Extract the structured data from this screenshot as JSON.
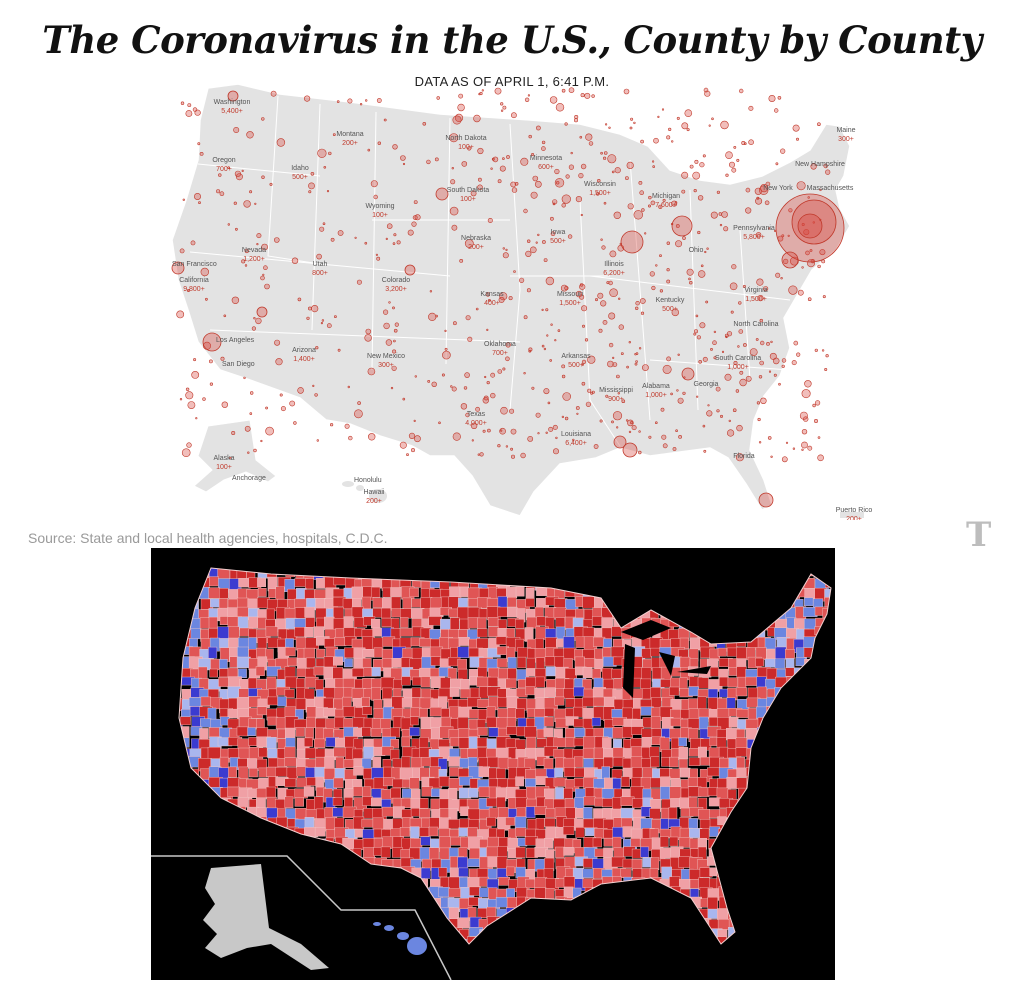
{
  "header": {
    "title": "The Coronavirus in the U.S., County by County",
    "subtitle": "DATA AS OF APRIL 1, 6:41 P.M."
  },
  "source": "Source: State and local health agencies, hospitals, C.D.C.",
  "logo_text": "T",
  "colors": {
    "land": "#e3e3e3",
    "bubble_stroke": "#c0392b",
    "bubble_fill": "rgba(214,70,60,0.35)",
    "rep_dark": "#cc2a2a",
    "rep_mid": "#e05555",
    "rep_light": "#f0a0a5",
    "dem_dark": "#3b3bd0",
    "dem_mid": "#6b86e0",
    "dem_light": "#a9b6ee",
    "inset_land": "#c8c8c8",
    "background_bottom": "#000000"
  },
  "state_labels": [
    {
      "name": "Washington",
      "value": "5,400+"
    },
    {
      "name": "Montana",
      "value": "200+"
    },
    {
      "name": "North Dakota",
      "value": "100+"
    },
    {
      "name": "Minnesota",
      "value": "600+"
    },
    {
      "name": "Maine",
      "value": "300+"
    },
    {
      "name": "Oregon",
      "value": "700+"
    },
    {
      "name": "Idaho",
      "value": "500+"
    },
    {
      "name": "South Dakota",
      "value": "100+"
    },
    {
      "name": "Wisconsin",
      "value": "1,500+"
    },
    {
      "name": "Michigan",
      "value": "7,600+"
    },
    {
      "name": "New Hampshire",
      "value": ""
    },
    {
      "name": "New York",
      "value": ""
    },
    {
      "name": "Massachusetts",
      "value": ""
    },
    {
      "name": "Wyoming",
      "value": "100+"
    },
    {
      "name": "Iowa",
      "value": "500+"
    },
    {
      "name": "Pennsylvania",
      "value": "5,800+"
    },
    {
      "name": "Nebraska",
      "value": "200+"
    },
    {
      "name": "Illinois",
      "value": "6,200+"
    },
    {
      "name": "Ohio",
      "value": ""
    },
    {
      "name": "Nevada",
      "value": "1,200+"
    },
    {
      "name": "Utah",
      "value": "800+"
    },
    {
      "name": "Colorado",
      "value": "3,200+"
    },
    {
      "name": "California",
      "value": "9,800+"
    },
    {
      "name": "Kansas",
      "value": "400+"
    },
    {
      "name": "Missouri",
      "value": "1,500+"
    },
    {
      "name": "Kentucky",
      "value": "500+"
    },
    {
      "name": "Virginia",
      "value": "1,500+"
    },
    {
      "name": "North Carolina",
      "value": ""
    },
    {
      "name": "Oklahoma",
      "value": "700+"
    },
    {
      "name": "Arizona",
      "value": "1,400+"
    },
    {
      "name": "New Mexico",
      "value": "300+"
    },
    {
      "name": "Arkansas",
      "value": "500+"
    },
    {
      "name": "South Carolina",
      "value": "1,000+"
    },
    {
      "name": "Georgia",
      "value": ""
    },
    {
      "name": "Mississippi",
      "value": "900+"
    },
    {
      "name": "Alabama",
      "value": "1,000+"
    },
    {
      "name": "Texas",
      "value": "4,000+"
    },
    {
      "name": "Louisiana",
      "value": "6,400+"
    },
    {
      "name": "Florida",
      "value": ""
    },
    {
      "name": "Alaska",
      "value": "100+"
    },
    {
      "name": "Hawaii",
      "value": "200+"
    },
    {
      "name": "Puerto Rico",
      "value": "200+"
    }
  ],
  "city_labels": [
    "San Francisco",
    "Los Angeles",
    "San Diego",
    "Anchorage",
    "Honolulu"
  ]
}
